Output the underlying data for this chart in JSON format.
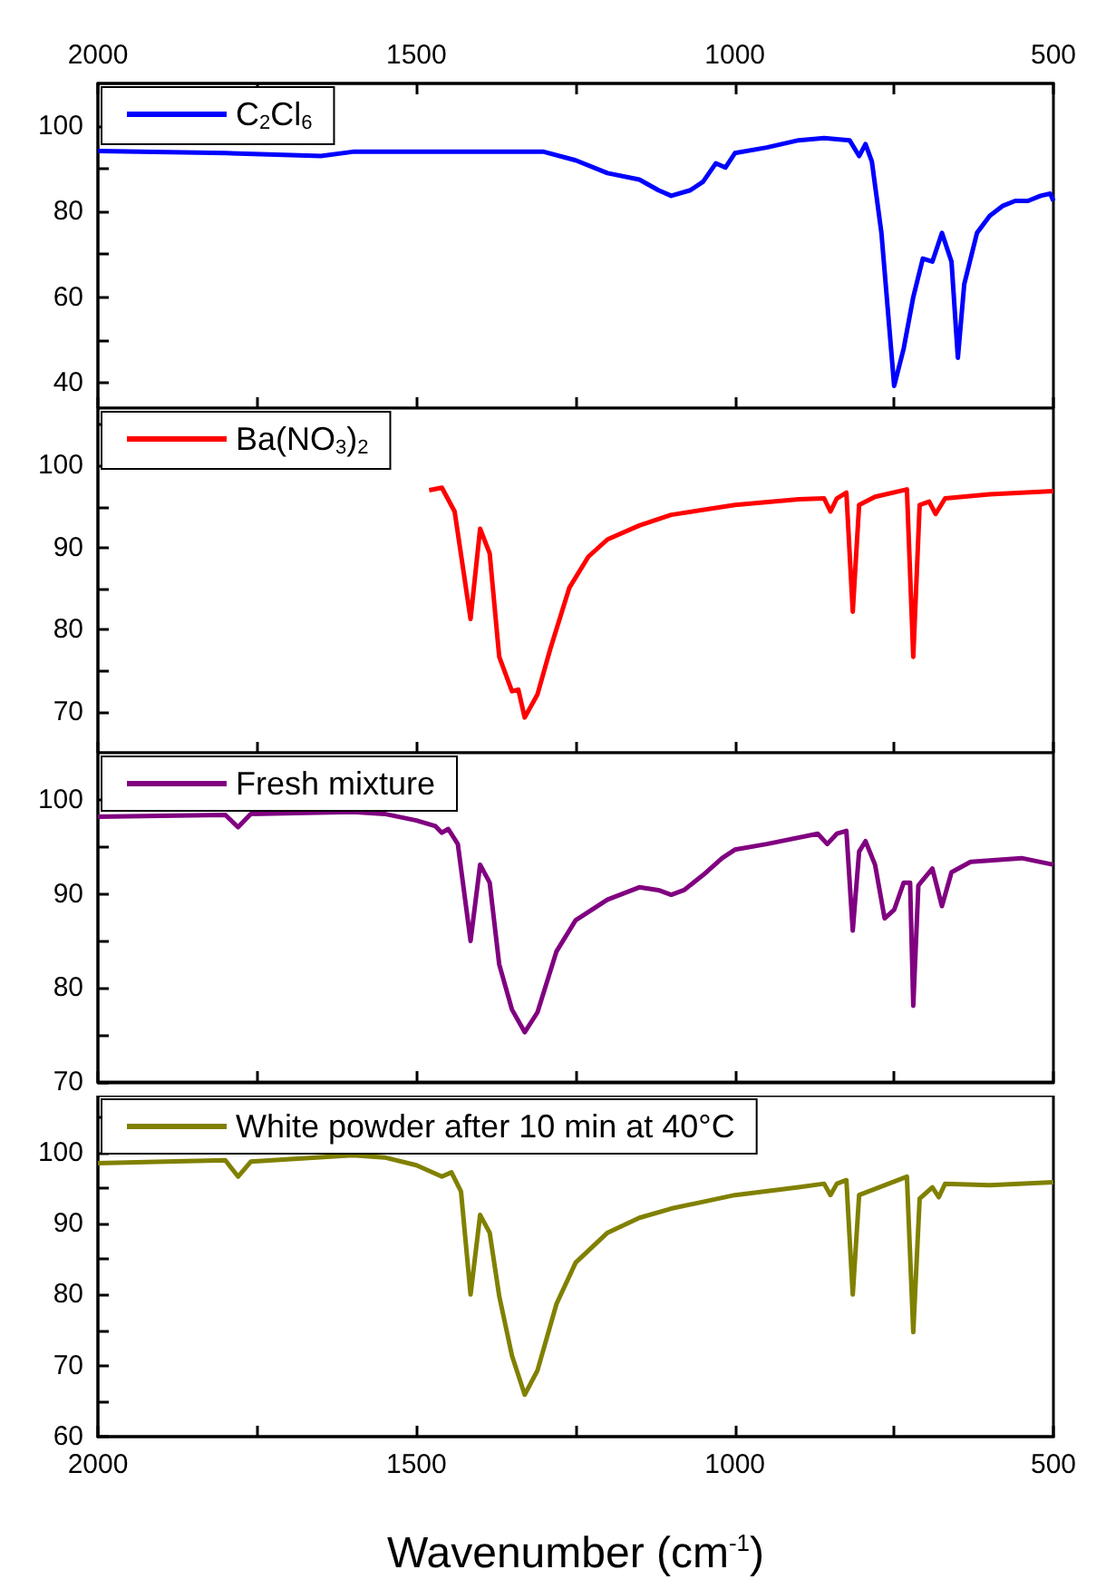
{
  "chart_data": [
    {
      "type": "line",
      "x": [
        2000,
        1800,
        1650,
        1600,
        1300,
        1250,
        1200,
        1150,
        1120,
        1100,
        1070,
        1050,
        1030,
        1015,
        1000,
        950,
        900,
        860,
        820,
        805,
        795,
        785,
        770,
        750,
        735,
        720,
        705,
        690,
        675,
        660,
        650,
        640,
        620,
        600,
        580,
        560,
        540,
        520,
        505,
        500
      ],
      "series": [
        {
          "name": "C$_{2}$Cl$_{6}$",
          "color": "#0000ff",
          "values": [
            94.2,
            93.7,
            93,
            94,
            94,
            92,
            89,
            87.5,
            85,
            83.7,
            85,
            87,
            91.3,
            90.3,
            93.7,
            95,
            96.7,
            97.2,
            96.7,
            93,
            95.8,
            91.7,
            75,
            39.2,
            48,
            60,
            69,
            68.3,
            75,
            68.3,
            45.8,
            63,
            75,
            79,
            81.3,
            82.5,
            82.5,
            83.7,
            84.2,
            82.5
          ]
        }
      ],
      "x2lim": [
        2000,
        500
      ],
      "x2ticks": [
        2000,
        {
          "value": 1750,
          "label": null
        },
        1500,
        {
          "value": 1250,
          "label": null
        },
        1000,
        {
          "value": 750,
          "label": null
        },
        500
      ],
      "xlim": [
        2000,
        500
      ],
      "xticks": [
        2000,
        {
          "value": 1750,
          "label": null
        },
        1500,
        {
          "value": 1250,
          "label": null
        },
        1000,
        {
          "value": 750,
          "label": null
        },
        500
      ],
      "tick_labels": "y",
      "ylim": [
        34,
        110
      ],
      "yticks": [
        40,
        {
          "value": 50,
          "label": null
        },
        60,
        {
          "value": 70,
          "label": null
        },
        80,
        {
          "value": 90,
          "label": null
        },
        100
      ],
      "legend": "top left",
      "grid": false
    },
    {
      "type": "line",
      "x": [
        1480,
        1460,
        1440,
        1415,
        1400,
        1385,
        1370,
        1350,
        1340,
        1330,
        1310,
        1290,
        1260,
        1230,
        1200,
        1150,
        1100,
        1000,
        900,
        860,
        850,
        840,
        825,
        815,
        805,
        780,
        730,
        720,
        710,
        695,
        685,
        670,
        600,
        500
      ],
      "series": [
        {
          "name": "Ba(NO$_{3}$)$_{2}$",
          "color": "#ff0000",
          "values": [
            97,
            97.3,
            94.4,
            81.3,
            92.3,
            89.3,
            76.7,
            72.5,
            72.7,
            69.3,
            72.1,
            77.6,
            85.1,
            88.9,
            91,
            92.7,
            94,
            95.2,
            95.9,
            96,
            94.4,
            96,
            96.7,
            82.2,
            95.2,
            96.2,
            97.1,
            76.7,
            95.2,
            95.6,
            94.1,
            96,
            96.5,
            96.9
          ]
        }
      ],
      "xlim": [
        2000,
        500
      ],
      "xticks": [
        2000,
        {
          "value": 1750,
          "label": null
        },
        1500,
        {
          "value": 1250,
          "label": null
        },
        1000,
        {
          "value": 750,
          "label": null
        },
        500
      ],
      "ylim": [
        65,
        107
      ],
      "yticks": [
        70,
        {
          "value": 75,
          "label": null
        },
        80,
        {
          "value": 85,
          "label": null
        },
        90,
        {
          "value": 95,
          "label": null
        },
        100,
        {
          "value": 105,
          "label": null
        }
      ],
      "tick_labels": "y",
      "legend": "top left",
      "grid": false
    },
    {
      "type": "line",
      "x": [
        2000,
        1800,
        1780,
        1760,
        1600,
        1550,
        1500,
        1470,
        1460,
        1450,
        1435,
        1415,
        1400,
        1385,
        1370,
        1350,
        1330,
        1310,
        1280,
        1250,
        1200,
        1150,
        1120,
        1100,
        1080,
        1050,
        1020,
        1000,
        950,
        870,
        855,
        840,
        825,
        815,
        805,
        795,
        780,
        765,
        750,
        735,
        725,
        720,
        712,
        690,
        675,
        660,
        630,
        550,
        500
      ],
      "series": [
        {
          "name": "Fresh mixture",
          "color": "#800080",
          "values": [
            98.2,
            98.4,
            97.1,
            98.5,
            98.7,
            98.5,
            97.8,
            97.2,
            96.5,
            96.9,
            95.3,
            85,
            93.1,
            91.2,
            82.5,
            77.7,
            75.3,
            77.4,
            83.9,
            87.2,
            89.4,
            90.7,
            90.4,
            89.9,
            90.4,
            92,
            93.8,
            94.7,
            95.3,
            96.4,
            95.3,
            96.4,
            96.7,
            86.1,
            94.5,
            95.6,
            93.1,
            87.4,
            88.3,
            91.2,
            91.2,
            78.1,
            90.9,
            92.7,
            88.7,
            92.3,
            93.4,
            93.8,
            93.1
          ]
        }
      ],
      "xlim": [
        2000,
        500
      ],
      "xticks": [
        2000,
        {
          "value": 1750,
          "label": null
        },
        1500,
        {
          "value": 1250,
          "label": null
        },
        1000,
        {
          "value": 750,
          "label": null
        },
        500
      ],
      "ylim": [
        70,
        105
      ],
      "yticks": [
        70,
        {
          "value": 75,
          "label": null
        },
        80,
        {
          "value": 85,
          "label": null
        },
        90,
        {
          "value": 95,
          "label": null
        },
        100
      ],
      "tick_labels": "y",
      "legend": "top left",
      "grid": false
    },
    {
      "type": "line",
      "x": [
        2000,
        1800,
        1780,
        1760,
        1600,
        1550,
        1500,
        1460,
        1445,
        1430,
        1415,
        1400,
        1385,
        1370,
        1350,
        1330,
        1310,
        1280,
        1250,
        1200,
        1150,
        1100,
        1000,
        900,
        860,
        850,
        840,
        825,
        815,
        805,
        730,
        720,
        710,
        690,
        680,
        670,
        600,
        500
      ],
      "series": [
        {
          "name": "White powder after 10 min at 40°C",
          "color": "#808000",
          "values": [
            98.5,
            98.9,
            96.6,
            98.7,
            99.6,
            99.3,
            98.2,
            96.6,
            97.2,
            94.5,
            80,
            91.2,
            88.7,
            79.8,
            71.4,
            65.9,
            69.3,
            78.7,
            84.5,
            88.7,
            90.8,
            92.1,
            94,
            95.1,
            95.6,
            94,
            95.6,
            96.1,
            80,
            94,
            96.6,
            74.7,
            93.5,
            95.1,
            93.7,
            95.6,
            95.4,
            95.8
          ]
        }
      ],
      "xlim": [
        2000,
        500
      ],
      "xticks": [
        2000,
        {
          "value": 1750,
          "label": null
        },
        1500,
        {
          "value": 1250,
          "label": null
        },
        1000,
        {
          "value": 750,
          "label": null
        },
        500
      ],
      "ylim": [
        60,
        108
      ],
      "yticks": [
        60,
        {
          "value": 65,
          "label": null
        },
        70,
        {
          "value": 75,
          "label": null
        },
        80,
        {
          "value": 85,
          "label": null
        },
        90,
        {
          "value": 95,
          "label": null
        },
        100,
        {
          "value": 105,
          "label": null
        }
      ],
      "xlabel": "Wavenumber (cm$^{-1}$)",
      "legend": "top left",
      "grid": false
    }
  ]
}
